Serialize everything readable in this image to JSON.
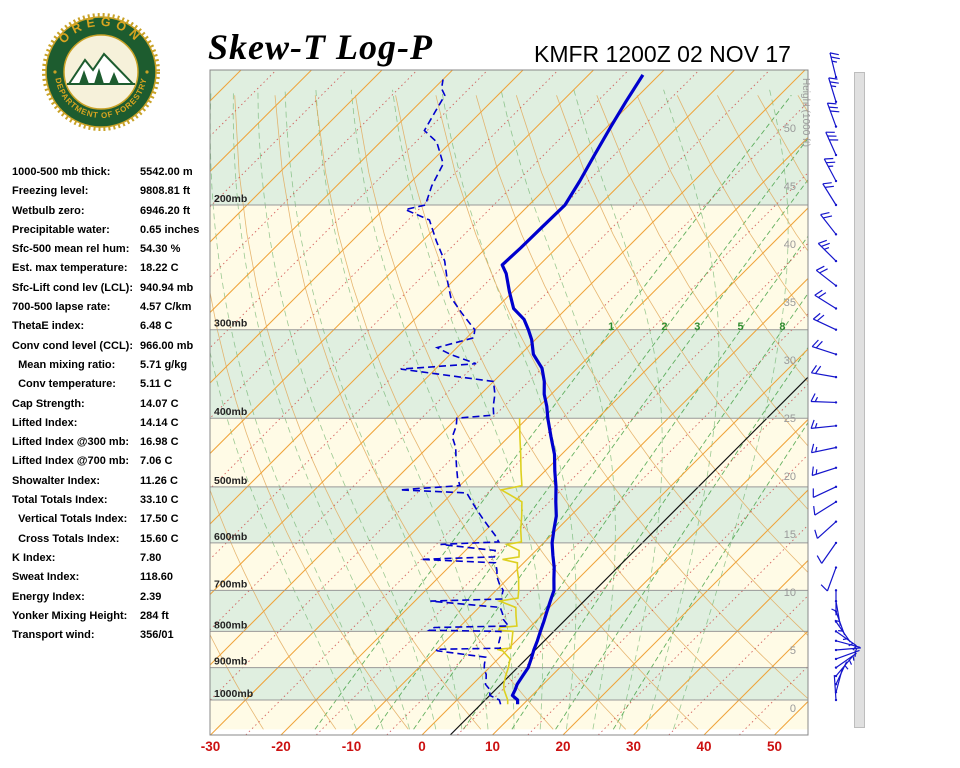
{
  "header": {
    "title": "Skew-T Log-P",
    "station_line": "KMFR 1200Z 02 NOV 17",
    "logo": {
      "top_text": "OREGON",
      "bottom_text": "DEPARTMENT OF FORESTRY"
    }
  },
  "indices": [
    {
      "label": "1000-500 mb thick:",
      "value": "5542.00 m"
    },
    {
      "label": "Freezing level:",
      "value": "9808.81 ft"
    },
    {
      "label": "Wetbulb zero:",
      "value": "6946.20 ft"
    },
    {
      "label": "Precipitable water:",
      "value": "0.65 inches"
    },
    {
      "label": "Sfc-500 mean rel hum:",
      "value": "54.30 %"
    },
    {
      "label": "Est. max temperature:",
      "value": "18.22 C"
    },
    {
      "label": "Sfc-Lift cond lev (LCL):",
      "value": "940.94 mb"
    },
    {
      "label": "700-500 lapse rate:",
      "value": "4.57 C/km"
    },
    {
      "label": "ThetaE index:",
      "value": "6.48 C"
    },
    {
      "label": "Conv cond level (CCL):",
      "value": "966.00 mb"
    },
    {
      "label": "  Mean mixing ratio:",
      "value": "5.71 g/kg"
    },
    {
      "label": "  Conv temperature:",
      "value": "5.11 C"
    },
    {
      "label": "Cap Strength:",
      "value": "14.07 C"
    },
    {
      "label": "Lifted Index:",
      "value": "14.14 C"
    },
    {
      "label": "Lifted Index @300 mb:",
      "value": "16.98 C"
    },
    {
      "label": "Lifted Index @700 mb:",
      "value": "7.06 C"
    },
    {
      "label": "Showalter Index:",
      "value": "11.26 C"
    },
    {
      "label": "Total Totals Index:",
      "value": "33.10 C"
    },
    {
      "label": "  Vertical Totals Index:",
      "value": "17.50 C"
    },
    {
      "label": "  Cross Totals Index:",
      "value": "15.60 C"
    },
    {
      "label": "K Index:",
      "value": "7.80"
    },
    {
      "label": "Sweat Index:",
      "value": "118.60"
    },
    {
      "label": "Energy Index:",
      "value": "2.39"
    },
    {
      "label": "Yonker Mixing Height:",
      "value": "284 ft"
    },
    {
      "label": "Transport wind:",
      "value": "356/01"
    }
  ],
  "chart_data": {
    "type": "skewt-log-p",
    "pressure_levels_mb": [
      200,
      300,
      400,
      500,
      600,
      700,
      800,
      900,
      1000
    ],
    "pressure_label_suffix": "mb",
    "temp_ticks_c": [
      -30,
      -20,
      -10,
      0,
      10,
      20,
      30,
      40,
      50
    ],
    "height_ticks_kft": [
      50,
      45,
      40,
      35,
      30,
      25,
      20,
      15,
      10,
      5,
      0
    ],
    "height_axis_label": "Height (1000 ft)",
    "mixing_ratio_labels": [
      1,
      2,
      3,
      5,
      8
    ],
    "mixing_ratio_lines_gkg": [
      1,
      2,
      3,
      5,
      8,
      12,
      20
    ],
    "isotherm_step_c": 10,
    "series": {
      "temperature": {
        "name": "Temperature",
        "points": [
          [
            1014,
            9.2
          ],
          [
            1000,
            8.6
          ],
          [
            985,
            7.2
          ],
          [
            967,
            6.8
          ],
          [
            950,
            6.3
          ],
          [
            925,
            5.9
          ],
          [
            900,
            5.5
          ],
          [
            875,
            4.7
          ],
          [
            850,
            3.8
          ],
          [
            825,
            3.0
          ],
          [
            800,
            2.1
          ],
          [
            775,
            1.2
          ],
          [
            750,
            0.2
          ],
          [
            725,
            -0.8
          ],
          [
            700,
            -1.8
          ],
          [
            675,
            -3.4
          ],
          [
            650,
            -5.0
          ],
          [
            625,
            -6.9
          ],
          [
            600,
            -8.8
          ],
          [
            575,
            -10.4
          ],
          [
            550,
            -12.0
          ],
          [
            525,
            -14.1
          ],
          [
            500,
            -16.2
          ],
          [
            475,
            -18.6
          ],
          [
            450,
            -21.0
          ],
          [
            425,
            -24.0
          ],
          [
            400,
            -27.1
          ],
          [
            385,
            -28.9
          ],
          [
            370,
            -31.0
          ],
          [
            355,
            -32.8
          ],
          [
            340,
            -35.0
          ],
          [
            325,
            -38.2
          ],
          [
            310,
            -40.5
          ],
          [
            300,
            -42.4
          ],
          [
            290,
            -44.5
          ],
          [
            280,
            -47.5
          ],
          [
            265,
            -50.5
          ],
          [
            250,
            -53.5
          ],
          [
            243,
            -55.3
          ],
          [
            230,
            -55.1
          ],
          [
            215,
            -55.0
          ],
          [
            200,
            -54.9
          ],
          [
            185,
            -56.2
          ],
          [
            170,
            -57.8
          ],
          [
            155,
            -59.5
          ],
          [
            143,
            -60.9
          ],
          [
            131,
            -62.3
          ]
        ]
      },
      "dewpoint": {
        "name": "Dewpoint",
        "points": [
          [
            1014,
            6.8
          ],
          [
            1000,
            6.0
          ],
          [
            985,
            4.0
          ],
          [
            967,
            3.2
          ],
          [
            950,
            1.8
          ],
          [
            935,
            1.2
          ],
          [
            920,
            0.5
          ],
          [
            905,
            -0.5
          ],
          [
            890,
            -1.2
          ],
          [
            870,
            -2.0
          ],
          [
            852,
            -9.8
          ],
          [
            848,
            -10.2
          ],
          [
            845,
            -1.2
          ],
          [
            830,
            -2.2
          ],
          [
            815,
            -2.8
          ],
          [
            800,
            -3.5
          ],
          [
            797,
            -13.8
          ],
          [
            790,
            -13.5
          ],
          [
            786,
            -3.2
          ],
          [
            770,
            -4.8
          ],
          [
            755,
            -5.8
          ],
          [
            740,
            -7.0
          ],
          [
            725,
            -17.8
          ],
          [
            720,
            -8.0
          ],
          [
            705,
            -8.8
          ],
          [
            700,
            -9.0
          ],
          [
            685,
            -10.5
          ],
          [
            670,
            -11.8
          ],
          [
            655,
            -12.8
          ],
          [
            640,
            -14.0
          ],
          [
            633,
            -25.1
          ],
          [
            628,
            -15.0
          ],
          [
            615,
            -15.8
          ],
          [
            603,
            -24.4
          ],
          [
            598,
            -16.5
          ],
          [
            585,
            -18.0
          ],
          [
            570,
            -20.0
          ],
          [
            555,
            -22.0
          ],
          [
            540,
            -24.0
          ],
          [
            525,
            -26.0
          ],
          [
            510,
            -28.0
          ],
          [
            505,
            -37.9
          ],
          [
            498,
            -30.0
          ],
          [
            485,
            -31.5
          ],
          [
            470,
            -33.0
          ],
          [
            455,
            -34.5
          ],
          [
            440,
            -36.0
          ],
          [
            425,
            -38.0
          ],
          [
            410,
            -39.0
          ],
          [
            400,
            -40.0
          ],
          [
            396,
            -35.2
          ],
          [
            385,
            -36.5
          ],
          [
            370,
            -38.0
          ],
          [
            355,
            -40.0
          ],
          [
            341,
            -54.9
          ],
          [
            335,
            -45.0
          ],
          [
            325,
            -50.0
          ],
          [
            318,
            -52.8
          ],
          [
            308,
            -49.0
          ],
          [
            300,
            -50.0
          ],
          [
            285,
            -54.0
          ],
          [
            270,
            -58.0
          ],
          [
            255,
            -61.0
          ],
          [
            240,
            -64.0
          ],
          [
            225,
            -68.0
          ],
          [
            210,
            -72.0
          ],
          [
            203,
            -76.9
          ],
          [
            200,
            -74.7
          ],
          [
            188,
            -76.5
          ],
          [
            175,
            -78.0
          ],
          [
            163,
            -82.0
          ],
          [
            157,
            -85.4
          ],
          [
            148,
            -86.5
          ],
          [
            140,
            -87.5
          ],
          [
            137,
            -88.9
          ],
          [
            133,
            -90.0
          ]
        ]
      },
      "wetbulb": {
        "name": "Wetbulb",
        "points": [
          [
            1014,
            7.8
          ],
          [
            1000,
            7.2
          ],
          [
            967,
            5.2
          ],
          [
            950,
            4.4
          ],
          [
            925,
            3.5
          ],
          [
            900,
            2.7
          ],
          [
            875,
            1.7
          ],
          [
            852,
            -0.5
          ],
          [
            848,
            -1.5
          ],
          [
            845,
            0.3
          ],
          [
            825,
            -0.6
          ],
          [
            800,
            -1.8
          ],
          [
            797,
            -4.0
          ],
          [
            790,
            -4.2
          ],
          [
            786,
            -2.0
          ],
          [
            760,
            -3.6
          ],
          [
            740,
            -4.8
          ],
          [
            725,
            -8.0
          ],
          [
            718,
            -5.8
          ],
          [
            700,
            -6.8
          ],
          [
            675,
            -8.4
          ],
          [
            655,
            -9.9
          ],
          [
            640,
            -10.9
          ],
          [
            633,
            -13.5
          ],
          [
            628,
            -11.5
          ],
          [
            615,
            -12.4
          ],
          [
            603,
            -15.0
          ],
          [
            598,
            -13.3
          ],
          [
            575,
            -15.1
          ],
          [
            550,
            -16.9
          ],
          [
            525,
            -18.9
          ],
          [
            505,
            -23.5
          ],
          [
            498,
            -21.2
          ],
          [
            475,
            -23.4
          ],
          [
            450,
            -25.8
          ],
          [
            425,
            -28.4
          ],
          [
            400,
            -31.1
          ]
        ]
      }
    },
    "winds": [
      [
        1000,
        356,
        1
      ],
      [
        975,
        15,
        2
      ],
      [
        950,
        25,
        3
      ],
      [
        925,
        40,
        3
      ],
      [
        900,
        55,
        5
      ],
      [
        875,
        70,
        5
      ],
      [
        850,
        85,
        5
      ],
      [
        825,
        105,
        5
      ],
      [
        800,
        125,
        5
      ],
      [
        775,
        145,
        5
      ],
      [
        750,
        160,
        5
      ],
      [
        725,
        170,
        5
      ],
      [
        700,
        180,
        7
      ],
      [
        650,
        200,
        8
      ],
      [
        600,
        215,
        10
      ],
      [
        560,
        228,
        10
      ],
      [
        525,
        238,
        10
      ],
      [
        500,
        245,
        12
      ],
      [
        470,
        252,
        13
      ],
      [
        440,
        258,
        15
      ],
      [
        410,
        264,
        15
      ],
      [
        380,
        272,
        17
      ],
      [
        350,
        280,
        20
      ],
      [
        325,
        288,
        20
      ],
      [
        300,
        295,
        20
      ],
      [
        280,
        302,
        22
      ],
      [
        260,
        308,
        22
      ],
      [
        240,
        315,
        25
      ],
      [
        220,
        322,
        22
      ],
      [
        200,
        328,
        20
      ],
      [
        185,
        332,
        25
      ],
      [
        170,
        336,
        28
      ],
      [
        155,
        340,
        30
      ],
      [
        143,
        343,
        27
      ],
      [
        132,
        346,
        25
      ]
    ],
    "colors": {
      "temperature": "#0000cd",
      "dewpoint": "#0000cd",
      "wetbulb": "#ddd020",
      "isotherm": "#efa33a",
      "isotherm_minor": "#cc4040",
      "dry_adiabat": "#e2a95c",
      "moist_adiabat": "#5aa85a",
      "mixing_ratio": "#3d9e3d",
      "mixing_ratio_label": "#2e8b2e",
      "wind": "#1515cc",
      "temp_axis": "#cc1111",
      "band_cream": "#fffbe6",
      "band_green": "#e0efe0"
    }
  }
}
